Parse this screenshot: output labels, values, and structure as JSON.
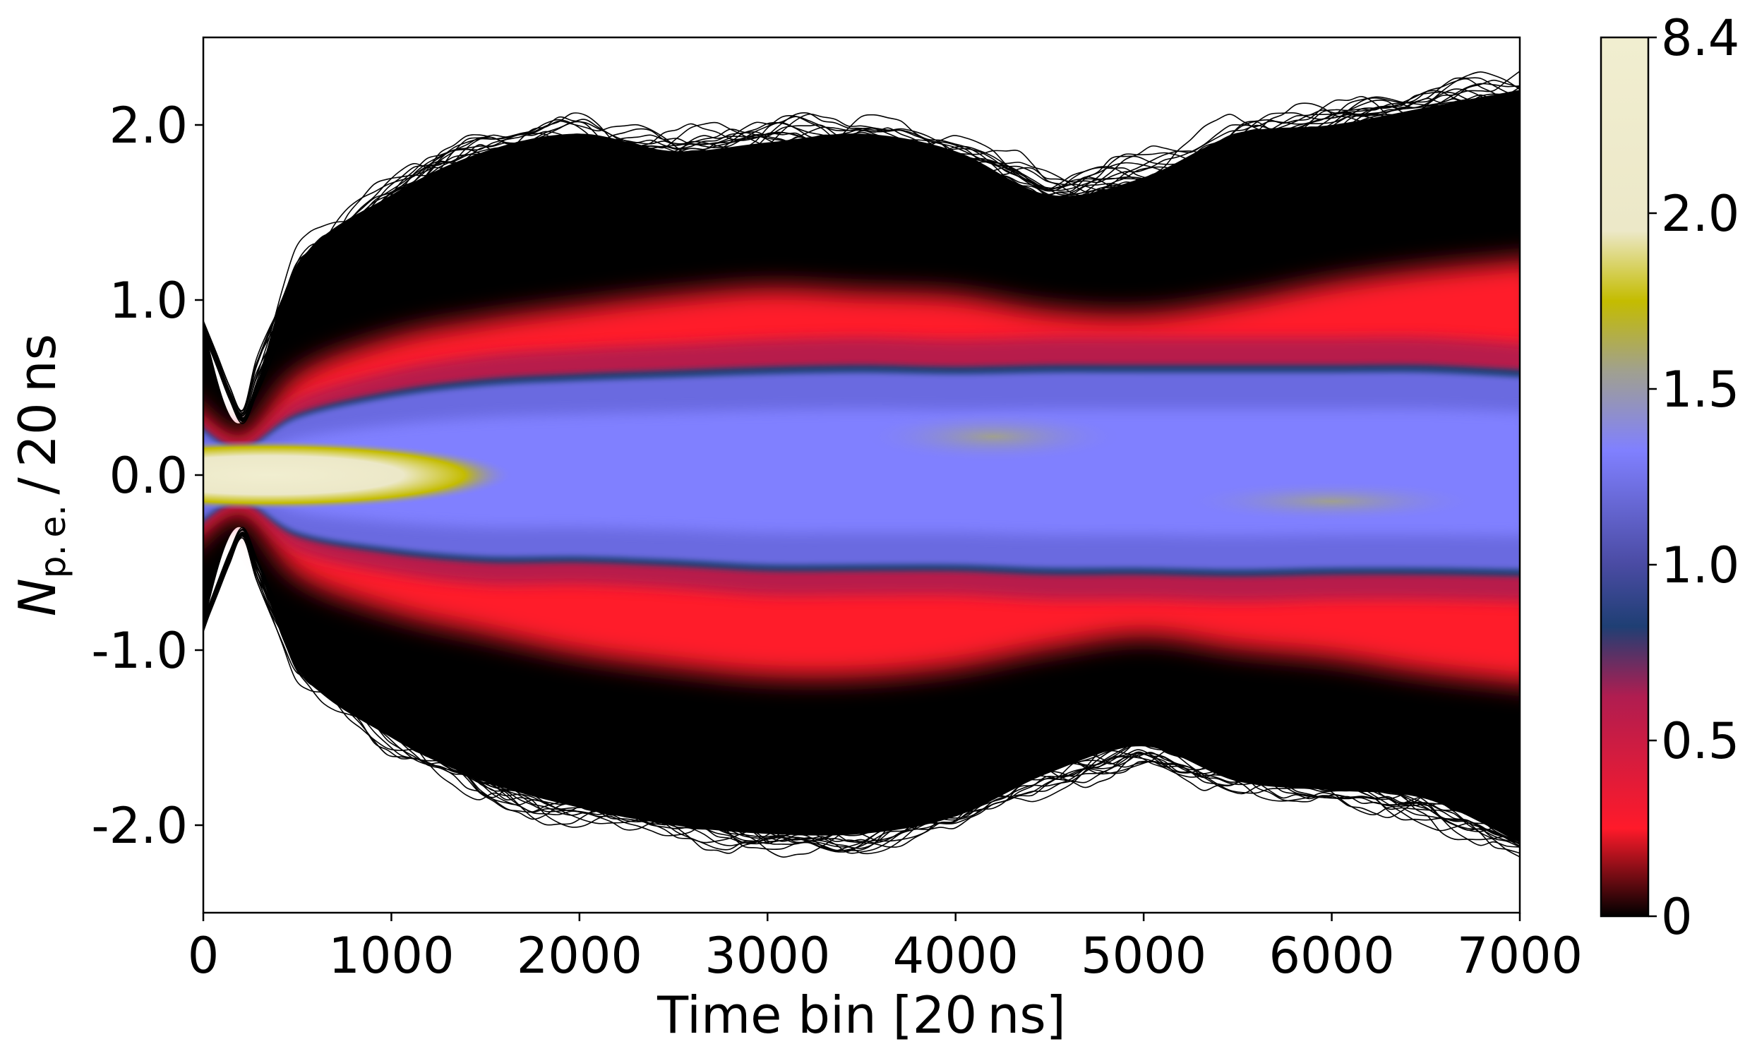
{
  "chart_data": {
    "type": "heatmap",
    "title": "",
    "xlabel": "Time bin [20 ns]",
    "ylabel": {
      "symbol": "N",
      "subscript": "p. e.",
      "suffix": " / 20 ns"
    },
    "xlim": [
      0,
      7000
    ],
    "ylim": [
      -2.5,
      2.5
    ],
    "x_ticks": [
      0,
      1000,
      2000,
      3000,
      4000,
      5000,
      6000,
      7000
    ],
    "x_tick_labels": [
      "0",
      "1000",
      "2000",
      "3000",
      "4000",
      "5000",
      "6000",
      "7000"
    ],
    "y_ticks": [
      -2.0,
      -1.0,
      0.0,
      1.0,
      2.0
    ],
    "y_tick_labels": [
      "-2.0",
      "-1.0",
      "0.0",
      "1.0",
      "2.0"
    ],
    "grid": false,
    "colorbar": {
      "ticks": [
        0,
        0.5,
        1.0,
        1.5,
        2.0,
        8.4
      ],
      "tick_labels": [
        "0",
        "0.5",
        "1.0",
        "1.5",
        "2.0",
        "8.4"
      ],
      "colors": [
        {
          "stop": 0.0,
          "color": "#000000"
        },
        {
          "stop": 0.1,
          "color": "#ff1a2a"
        },
        {
          "stop": 0.25,
          "color": "#b01d50"
        },
        {
          "stop": 0.33,
          "color": "#1f3f74"
        },
        {
          "stop": 0.4,
          "color": "#4a4ba3"
        },
        {
          "stop": 0.53,
          "color": "#8080ff"
        },
        {
          "stop": 0.62,
          "color": "#a0a090"
        },
        {
          "stop": 0.7,
          "color": "#c4bc00"
        },
        {
          "stop": 0.78,
          "color": "#ece8c8"
        },
        {
          "stop": 1.0,
          "color": "#f1eed0"
        }
      ]
    },
    "envelope": {
      "x": [
        0,
        200,
        500,
        1000,
        1500,
        2000,
        2500,
        3000,
        3500,
        4000,
        4500,
        5000,
        5500,
        6000,
        6500,
        7000
      ],
      "upper": [
        0.85,
        0.3,
        1.2,
        1.6,
        1.85,
        1.95,
        1.85,
        1.9,
        1.95,
        1.85,
        1.6,
        1.7,
        1.95,
        2.0,
        2.1,
        2.2
      ],
      "lower": [
        -0.85,
        -0.3,
        -1.1,
        -1.5,
        -1.75,
        -1.9,
        -2.0,
        -2.05,
        -2.05,
        -1.95,
        -1.7,
        -1.55,
        -1.75,
        -1.8,
        -1.85,
        -2.1
      ]
    },
    "red_band": {
      "x": [
        0,
        200,
        500,
        1000,
        1500,
        2000,
        2500,
        3000,
        3500,
        4000,
        4500,
        5000,
        5500,
        6000,
        6500,
        7000
      ],
      "upper": [
        0.45,
        0.2,
        0.55,
        0.75,
        0.85,
        0.92,
        0.98,
        1.02,
        1.0,
        0.98,
        0.9,
        0.88,
        0.95,
        1.05,
        1.12,
        1.18
      ],
      "lower": [
        -0.45,
        -0.2,
        -0.55,
        -0.75,
        -0.87,
        -0.98,
        -1.05,
        -1.1,
        -1.1,
        -1.05,
        -0.95,
        -0.88,
        -0.95,
        -1.0,
        -1.08,
        -1.15
      ]
    },
    "blue_band": {
      "x": [
        0,
        200,
        500,
        1000,
        1500,
        2000,
        2500,
        3000,
        3500,
        4000,
        4500,
        5000,
        5500,
        6000,
        6500,
        7000
      ],
      "upper": [
        0.3,
        0.15,
        0.35,
        0.48,
        0.55,
        0.58,
        0.6,
        0.62,
        0.63,
        0.62,
        0.63,
        0.63,
        0.63,
        0.63,
        0.63,
        0.6
      ],
      "lower": [
        -0.3,
        -0.15,
        -0.35,
        -0.45,
        -0.5,
        -0.5,
        -0.52,
        -0.55,
        -0.55,
        -0.55,
        -0.57,
        -0.57,
        -0.58,
        -0.57,
        -0.57,
        -0.58
      ]
    }
  }
}
